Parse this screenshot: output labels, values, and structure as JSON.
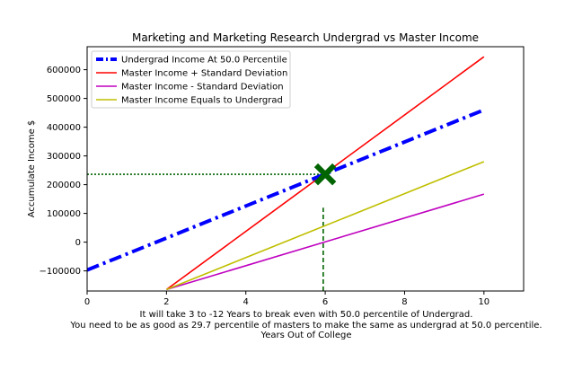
{
  "chart_data": {
    "type": "line",
    "title": "Marketing and Marketing Research Undergrad vs Master Income",
    "ylabel": "Accumulate Income $",
    "xlabel_lines": [
      "It will take 3 to -12 Years to break even with 50.0 percentile of Undergrad.",
      "You need to be as good as 29.7 percentile of masters to make the same as undergrad at 50.0 percentile.",
      "Years Out of College"
    ],
    "xlim": [
      0,
      11
    ],
    "ylim": [
      -170000,
      680000
    ],
    "x_ticks": [
      0,
      2,
      4,
      6,
      8,
      10
    ],
    "y_ticks": [
      -100000,
      0,
      100000,
      200000,
      300000,
      400000,
      500000,
      600000
    ],
    "y_tick_labels": [
      "−100000",
      "0",
      "100000",
      "200000",
      "300000",
      "400000",
      "500000",
      "600000"
    ],
    "legend_position": "upper-left",
    "series": [
      {
        "name": "Undergrad Income At 50.0 Percentile",
        "color": "#0000ff",
        "style": "dashdot",
        "x": [
          0,
          10
        ],
        "y": [
          -97000,
          460000
        ]
      },
      {
        "name": "Master Income + Standard Deviation",
        "color": "#ff0000",
        "style": "solid",
        "x": [
          2,
          10
        ],
        "y": [
          -165000,
          645000
        ]
      },
      {
        "name": "Master Income - Standard Deviation",
        "color": "#bf00bf",
        "style": "solid",
        "x": [
          2,
          10
        ],
        "y": [
          -165000,
          167000
        ]
      },
      {
        "name": "Master Income Equals to Undergrad",
        "color": "#bfbf00",
        "style": "solid",
        "x": [
          2,
          10
        ],
        "y": [
          -165000,
          280000
        ]
      }
    ],
    "break_even_marker": {
      "x": 6,
      "y": 236000,
      "color": "#006400",
      "symbol": "X"
    },
    "guide_lines": [
      {
        "orientation": "horizontal",
        "color": "#006400",
        "y": 236000,
        "x_from": 0,
        "x_to": 6
      },
      {
        "orientation": "vertical",
        "color": "#006400",
        "x": 5.95,
        "y_from": -170000,
        "y_to": 120000
      }
    ]
  }
}
